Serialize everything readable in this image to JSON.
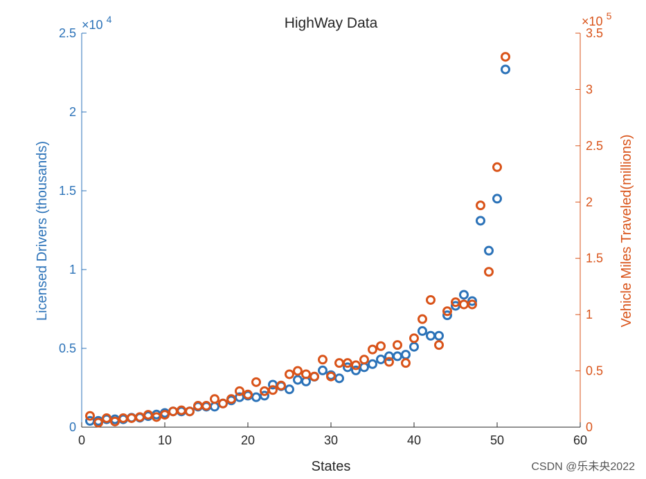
{
  "chart_data": {
    "type": "scatter",
    "title": "HighWay Data",
    "xlabel": "States",
    "xlim": [
      0,
      60
    ],
    "xticks": [
      "0",
      "10",
      "20",
      "30",
      "40",
      "50",
      "60"
    ],
    "left_axis": {
      "label": "Licensed Drivers (thousands)",
      "exponent_base": "×10",
      "exponent_power": "4",
      "ylim": [
        0,
        2.5
      ],
      "ticks": [
        "0",
        "0.5",
        "1",
        "1.5",
        "2",
        "2.5"
      ],
      "color": "#2b72b8"
    },
    "right_axis": {
      "label": "Vehicle Miles Traveled(millions)",
      "exponent_base": "×10",
      "exponent_power": "5",
      "ylim": [
        0,
        3.5
      ],
      "ticks": [
        "0",
        "0.5",
        "1",
        "1.5",
        "2",
        "2.5",
        "3",
        "3.5"
      ],
      "color": "#d95319"
    },
    "grid": false,
    "x": [
      1,
      2,
      3,
      4,
      5,
      6,
      7,
      8,
      9,
      10,
      11,
      12,
      13,
      14,
      15,
      16,
      17,
      18,
      19,
      20,
      21,
      22,
      23,
      24,
      25,
      26,
      27,
      28,
      29,
      30,
      31,
      32,
      33,
      34,
      35,
      36,
      37,
      38,
      39,
      40,
      41,
      42,
      43,
      44,
      45,
      46,
      47,
      48,
      49,
      50,
      51
    ],
    "series": [
      {
        "axis": "left",
        "marker": "open-circle",
        "color": "#2b72b8",
        "values": [
          0.04,
          0.04,
          0.05,
          0.05,
          0.05,
          0.06,
          0.06,
          0.07,
          0.08,
          0.09,
          0.1,
          0.1,
          0.1,
          0.13,
          0.13,
          0.13,
          0.15,
          0.17,
          0.19,
          0.2,
          0.19,
          0.2,
          0.27,
          0.26,
          0.24,
          0.3,
          0.29,
          0.32,
          0.36,
          0.33,
          0.31,
          0.38,
          0.36,
          0.38,
          0.4,
          0.43,
          0.45,
          0.45,
          0.46,
          0.51,
          0.61,
          0.58,
          0.58,
          0.71,
          0.77,
          0.84,
          0.8,
          1.31,
          1.12,
          1.45,
          2.27
        ]
      },
      {
        "axis": "right",
        "marker": "open-circle",
        "color": "#d95319",
        "values": [
          0.1,
          0.04,
          0.08,
          0.05,
          0.08,
          0.08,
          0.09,
          0.11,
          0.09,
          0.11,
          0.14,
          0.15,
          0.14,
          0.19,
          0.19,
          0.25,
          0.21,
          0.25,
          0.32,
          0.29,
          0.4,
          0.32,
          0.33,
          0.37,
          0.47,
          0.5,
          0.47,
          0.45,
          0.6,
          0.45,
          0.57,
          0.57,
          0.55,
          0.6,
          0.69,
          0.72,
          0.58,
          0.73,
          0.57,
          0.79,
          0.96,
          1.13,
          0.73,
          1.03,
          1.11,
          1.09,
          1.09,
          1.97,
          1.38,
          2.31,
          3.29
        ]
      }
    ]
  },
  "watermark": "CSDN @乐未央2022"
}
